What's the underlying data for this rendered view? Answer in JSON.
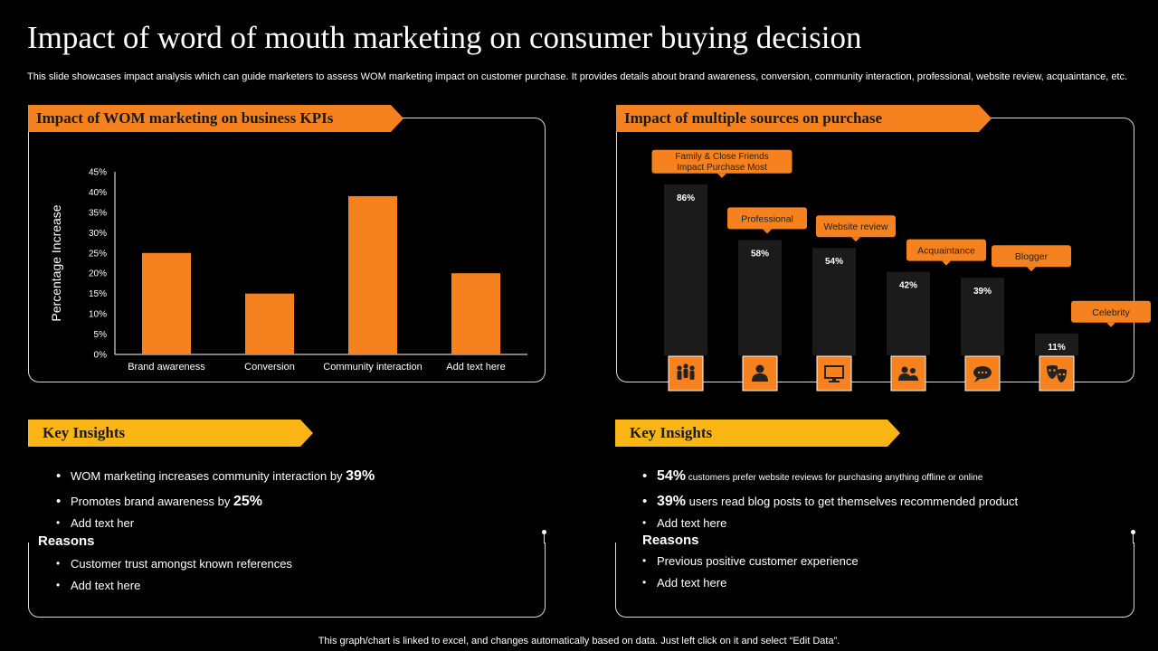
{
  "title": "Impact of word of mouth marketing on consumer buying decision",
  "subtitle": "This slide showcases impact analysis which can guide marketers to assess WOM marketing impact on customer purchase. It provides details about brand awareness, conversion, community interaction, professional, website review, acquaintance, etc.",
  "colors": {
    "accent": "#F5821F",
    "amber": "#FBB515",
    "dark_bar": "#1B1B1B",
    "background": "#000000"
  },
  "left_panel": {
    "heading": "Impact of WOM marketing on business KPIs"
  },
  "right_panel": {
    "heading": "Impact of multiple sources on purchase"
  },
  "chart_data": [
    {
      "type": "bar",
      "title": "Impact of WOM marketing on business KPIs",
      "xlabel": "",
      "ylabel": "Percentage Increase",
      "ylim": [
        0,
        45
      ],
      "yticks": [
        "0%",
        "5%",
        "10%",
        "15%",
        "20%",
        "25%",
        "30%",
        "35%",
        "40%",
        "45%"
      ],
      "yticks_values": [
        0,
        5,
        10,
        15,
        20,
        25,
        30,
        35,
        40,
        45
      ],
      "categories": [
        "Brand awareness",
        "Conversion",
        "Community interaction",
        "Add text here"
      ],
      "values": [
        25,
        15,
        39,
        20
      ],
      "color": "#F5821F",
      "grid": false
    },
    {
      "type": "bar",
      "title": "Impact of multiple sources on purchase",
      "categories": [
        "Family & Close Friends Impact Purchase Most",
        "Professional",
        "Website review",
        "Acquaintance",
        "Blogger",
        "Celebrity"
      ],
      "values": [
        86,
        58,
        54,
        42,
        39,
        11
      ],
      "value_labels": [
        "86%",
        "58%",
        "54%",
        "42%",
        "39%",
        "11%"
      ],
      "ylim": [
        0,
        100
      ],
      "icons": [
        "family-icon",
        "person-icon",
        "monitor-icon",
        "people-icon",
        "chat-bubble-icon",
        "theater-masks-icon"
      ],
      "color": "#1B1B1B"
    }
  ],
  "insights_left": {
    "heading": "Key Insights",
    "items": [
      {
        "text": "WOM marketing increases community interaction by ",
        "num": "39%"
      },
      {
        "text": "Promotes brand awareness  by ",
        "num": "25%"
      },
      {
        "text": "Add text her",
        "num": ""
      }
    ],
    "reasons_heading": "Reasons",
    "reasons": [
      "Customer trust amongst known references",
      "Add text here"
    ]
  },
  "insights_right": {
    "heading": "Key Insights",
    "items": [
      {
        "num": "54%",
        "text": " customers prefer website reviews for purchasing anything offline or online",
        "small": true
      },
      {
        "num": "39%",
        "text": " users read  blog posts to get themselves  recommended  product",
        "small": false
      },
      {
        "num": "",
        "text": "Add text here",
        "small": false
      }
    ],
    "reasons_heading": "Reasons",
    "reasons": [
      "Previous  positive  customer experience",
      "Add text here"
    ]
  },
  "footer": "This graph/chart is linked to excel,  and changes automatically based on data. Just left click on it and select “Edit Data”."
}
